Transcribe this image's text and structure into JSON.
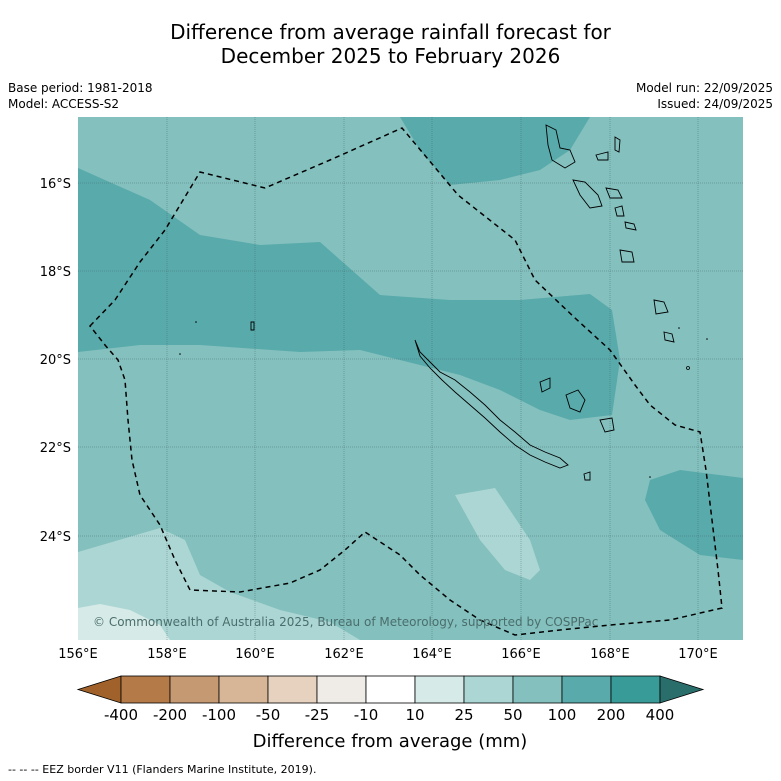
{
  "title_line1": "Difference from average rainfall forecast for",
  "title_line2": "December 2025 to February 2026",
  "base_period": "Base period: 1981-2018",
  "model": "Model: ACCESS-S2",
  "model_run": "Model run: 22/09/2025",
  "issued": "Issued: 24/09/2025",
  "lat_labels": [
    "16°S",
    "18°S",
    "20°S",
    "22°S",
    "24°S"
  ],
  "lon_labels": [
    "156°E",
    "158°E",
    "160°E",
    "162°E",
    "164°E",
    "166°E",
    "168°E",
    "170°E"
  ],
  "copyright": "© Commonwealth of Australia 2025, Bureau of Meteorology, supported by COSPPac",
  "colorbar": {
    "labels": [
      "-400",
      "-200",
      "-100",
      "-50",
      "-25",
      "-10",
      "10",
      "25",
      "50",
      "100",
      "200",
      "400"
    ],
    "colors": [
      "#a0612a",
      "#b47a48",
      "#c59a72",
      "#d6b697",
      "#e6d2bf",
      "#efebe7",
      "#ffffff",
      "#d6eae8",
      "#acd6d4",
      "#84c0be",
      "#59aaab",
      "#399b98",
      "#2a6e6c"
    ],
    "title": "Difference from average (mm)"
  },
  "legend_line": "--  --  -- EEZ border V11 (Flanders Marine Institute, 2019)."
}
